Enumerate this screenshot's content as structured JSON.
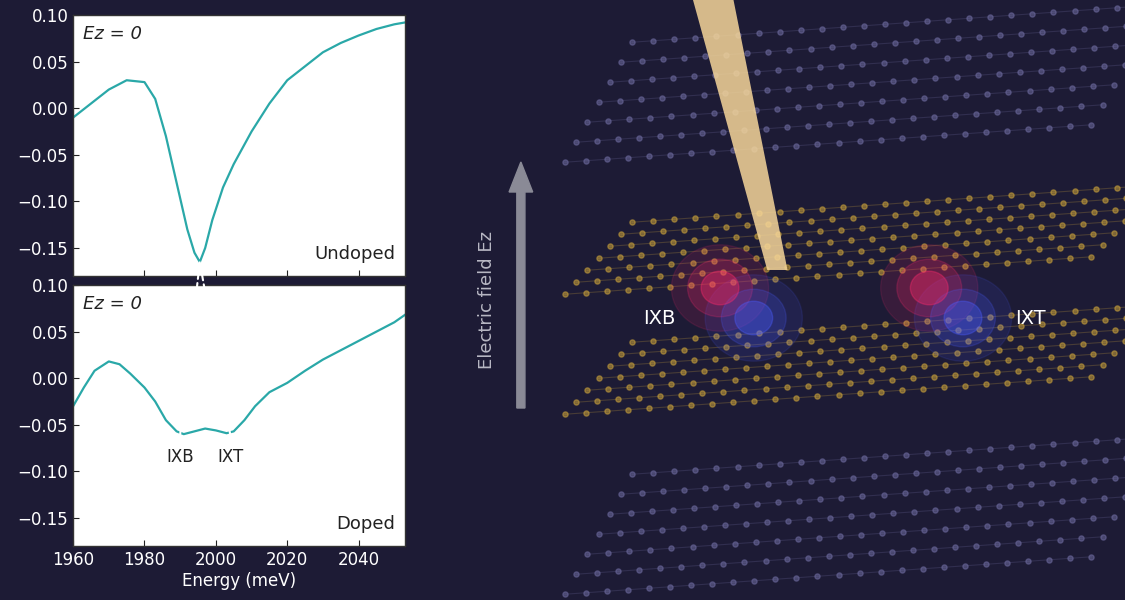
{
  "chart_data": [
    {
      "type": "line",
      "x": [
        1960,
        1965,
        1970,
        1975,
        1980,
        1983,
        1986,
        1989,
        1992,
        1994,
        1995.5,
        1997,
        1999,
        2002,
        2005,
        2010,
        2015,
        2020,
        2025,
        2030,
        2035,
        2040,
        2045,
        2050,
        2053
      ],
      "values": [
        -0.01,
        0.005,
        0.02,
        0.03,
        0.028,
        0.01,
        -0.03,
        -0.08,
        -0.13,
        -0.155,
        -0.165,
        -0.15,
        -0.12,
        -0.085,
        -0.06,
        -0.025,
        0.005,
        0.03,
        0.045,
        0.06,
        0.07,
        0.078,
        0.085,
        0.09,
        0.092
      ],
      "color": "#2aa8a8",
      "xlim": [
        1960,
        2053
      ],
      "xticks": [
        1960,
        1980,
        2000,
        2020,
        2040
      ],
      "ylim": [
        -0.18,
        0.1
      ],
      "yticks": [
        {
          "value": -0.15,
          "label": "−0.15"
        },
        {
          "value": -0.1,
          "label": "−0.10"
        },
        {
          "value": -0.05,
          "label": "−0.05"
        },
        {
          "value": 0.0,
          "label": "0.00"
        },
        {
          "value": 0.05,
          "label": "0.05"
        },
        {
          "value": 0.1,
          "label": "0.10"
        }
      ],
      "tick_labels": "y",
      "field_note": "Ez = 0",
      "sample_label": "Undoped"
    },
    {
      "type": "line",
      "x": [
        1960,
        1963,
        1966,
        1970,
        1973,
        1976,
        1980,
        1983,
        1986,
        1989,
        1991,
        1994,
        1997,
        2000,
        2003,
        2005,
        2008,
        2011,
        2015,
        2020,
        2025,
        2030,
        2035,
        2040,
        2045,
        2050,
        2053
      ],
      "values": [
        -0.03,
        -0.01,
        0.008,
        0.018,
        0.015,
        0.005,
        -0.01,
        -0.025,
        -0.045,
        -0.057,
        -0.06,
        -0.057,
        -0.054,
        -0.056,
        -0.059,
        -0.057,
        -0.045,
        -0.03,
        -0.015,
        -0.005,
        0.008,
        0.02,
        0.03,
        0.04,
        0.05,
        0.06,
        0.068
      ],
      "color": "#2aa8a8",
      "x_label": "Energy (meV)",
      "xlim": [
        1960,
        2053
      ],
      "xticks": [
        1960,
        1980,
        2000,
        2020,
        2040
      ],
      "ylim": [
        -0.18,
        0.1
      ],
      "yticks": [
        {
          "value": -0.15,
          "label": "−0.15"
        },
        {
          "value": -0.1,
          "label": "−0.10"
        },
        {
          "value": -0.05,
          "label": "−0.05"
        },
        {
          "value": 0.0,
          "label": "0.00"
        },
        {
          "value": 0.05,
          "label": "0.05"
        },
        {
          "value": 0.1,
          "label": "0.10"
        }
      ],
      "field_note": "Ez = 0",
      "sample_label": "Doped",
      "annotations": [
        {
          "text": "IXB",
          "x": 1990,
          "y": -0.06
        },
        {
          "text": "IXT",
          "x": 2004,
          "y": -0.06
        }
      ]
    }
  ],
  "illustration": {
    "field_label": "Electric field Ez",
    "exciton_labels": [
      "IXB",
      "IXT"
    ]
  }
}
